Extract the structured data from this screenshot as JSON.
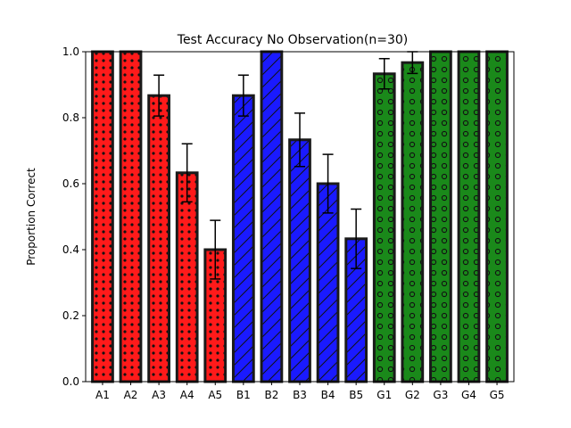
{
  "chart_data": {
    "type": "bar",
    "title": "Test Accuracy No Observation(n=30)",
    "xlabel": "",
    "ylabel": "Proportion Correct",
    "ylim": [
      0,
      1.0
    ],
    "yticks": [
      "0.0",
      "0.2",
      "0.4",
      "0.6",
      "0.8",
      "1.0"
    ],
    "grid": false,
    "categories": [
      "A1",
      "A2",
      "A3",
      "A4",
      "A5",
      "B1",
      "B2",
      "B3",
      "B4",
      "B5",
      "G1",
      "G2",
      "G3",
      "G4",
      "G5"
    ],
    "values": [
      1.0,
      1.0,
      0.867,
      0.633,
      0.4,
      0.867,
      1.0,
      0.733,
      0.6,
      0.433,
      0.933,
      0.967,
      1.0,
      1.0,
      1.0
    ],
    "errors": [
      0.0,
      0.0,
      0.062,
      0.088,
      0.089,
      0.062,
      0.0,
      0.081,
      0.089,
      0.09,
      0.046,
      0.033,
      0.0,
      0.0,
      0.0
    ],
    "groups": [
      {
        "prefix": "A",
        "color": "#ff1a1a",
        "pattern": "dots"
      },
      {
        "prefix": "B",
        "color": "#1a1aff",
        "pattern": "slashes"
      },
      {
        "prefix": "G",
        "color": "#1a891a",
        "pattern": "circles"
      }
    ]
  }
}
